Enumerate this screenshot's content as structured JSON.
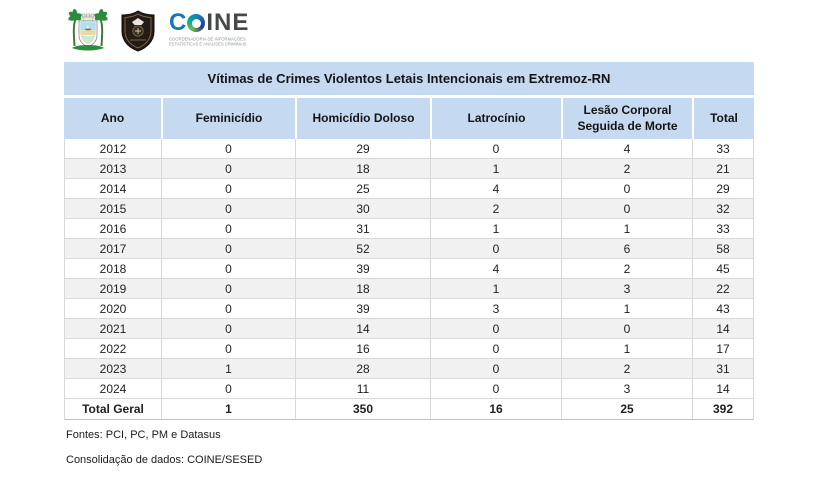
{
  "logos": {
    "coine": {
      "wordmark_c": "C",
      "wordmark_ine": "INE",
      "subtitle_line1": "COORDENADORIA DE INFORMAÇÕES",
      "subtitle_line2": "ESTATÍSTICAS E ANÁLISES CRIMINAIS"
    },
    "state_seal": "rio-grande-do-norte-coat-of-arms",
    "police_shield": "police-institution-emblem"
  },
  "chart_data": {
    "type": "table",
    "title": "Vítimas de Crimes Violentos Letais Intencionais em Extremoz-RN",
    "columns": [
      "Ano",
      "Feminicídio",
      "Homicídio Doloso",
      "Latrocínio",
      "Lesão Corporal Seguida de Morte",
      "Total"
    ],
    "rows": [
      [
        "2012",
        "0",
        "29",
        "0",
        "4",
        "33"
      ],
      [
        "2013",
        "0",
        "18",
        "1",
        "2",
        "21"
      ],
      [
        "2014",
        "0",
        "25",
        "4",
        "0",
        "29"
      ],
      [
        "2015",
        "0",
        "30",
        "2",
        "0",
        "32"
      ],
      [
        "2016",
        "0",
        "31",
        "1",
        "1",
        "33"
      ],
      [
        "2017",
        "0",
        "52",
        "0",
        "6",
        "58"
      ],
      [
        "2018",
        "0",
        "39",
        "4",
        "2",
        "45"
      ],
      [
        "2019",
        "0",
        "18",
        "1",
        "3",
        "22"
      ],
      [
        "2020",
        "0",
        "39",
        "3",
        "1",
        "43"
      ],
      [
        "2021",
        "0",
        "14",
        "0",
        "0",
        "14"
      ],
      [
        "2022",
        "0",
        "16",
        "0",
        "1",
        "17"
      ],
      [
        "2023",
        "1",
        "28",
        "0",
        "2",
        "31"
      ],
      [
        "2024",
        "0",
        "11",
        "0",
        "3",
        "14"
      ]
    ],
    "total_row": [
      "Total Geral",
      "1",
      "350",
      "16",
      "25",
      "392"
    ],
    "layout_hints": {
      "header_fill": "#c5d9f1",
      "alt_row_fill": "#f1f1f1",
      "grid_border": "#d9d9d9",
      "zebra_striping": true
    }
  },
  "footer": {
    "sources": "Fontes: PCI, PC, PM e Datasus",
    "consolidation": "Consolidação de dados: COINE/SESED"
  }
}
